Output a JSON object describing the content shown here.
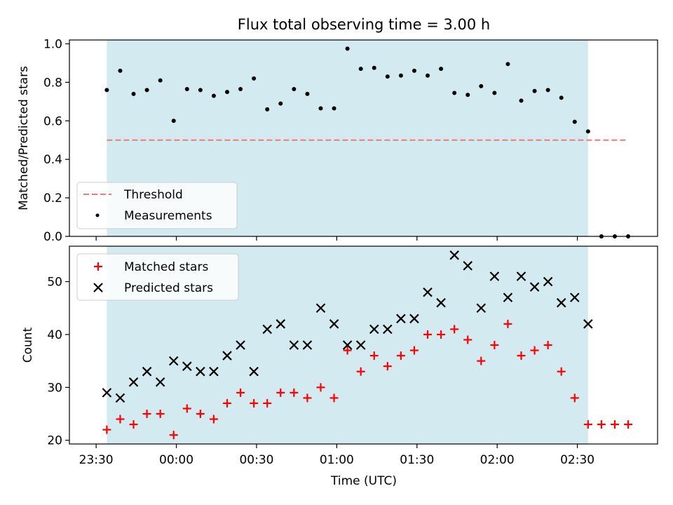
{
  "title": "Flux total observing time = 3.00 h",
  "colors": {
    "shade": "#d4eaf1",
    "threshold": "#f07a7a",
    "measurements": "#000000",
    "matched": "#ff0000",
    "predicted": "#000000"
  },
  "chart_data": [
    {
      "type": "scatter",
      "ylabel": "Matched/Predicted stars",
      "ylim": [
        0,
        1.02
      ],
      "yticks": [
        0.0,
        0.2,
        0.4,
        0.6,
        0.8,
        1.0
      ],
      "ytick_labels": [
        "0.0",
        "0.2",
        "0.4",
        "0.6",
        "0.8",
        "1.0"
      ],
      "xlim": [
        "23:20",
        "03:00"
      ],
      "xticks": [
        "23:30",
        "00:00",
        "00:30",
        "01:00",
        "01:30",
        "02:00",
        "02:30"
      ],
      "shaded_span": [
        "23:34",
        "02:34"
      ],
      "legend": {
        "position": "lower-left",
        "entries": [
          {
            "label": "Threshold",
            "marker": "dashed-line"
          },
          {
            "label": "Measurements",
            "marker": "dot"
          }
        ]
      },
      "threshold": {
        "name": "Threshold",
        "y": 0.5,
        "x": [
          "23:34",
          "02:49"
        ]
      },
      "series": [
        {
          "name": "Measurements",
          "x": [
            "23:34",
            "23:39",
            "23:44",
            "23:49",
            "23:54",
            "23:59",
            "00:04",
            "00:09",
            "00:14",
            "00:19",
            "00:24",
            "00:29",
            "00:34",
            "00:39",
            "00:44",
            "00:49",
            "00:54",
            "00:59",
            "01:04",
            "01:09",
            "01:14",
            "01:19",
            "01:24",
            "01:29",
            "01:34",
            "01:39",
            "01:44",
            "01:49",
            "01:54",
            "01:59",
            "02:04",
            "02:09",
            "02:14",
            "02:19",
            "02:24",
            "02:29",
            "02:34",
            "02:39",
            "02:44",
            "02:49"
          ],
          "y": [
            0.76,
            0.86,
            0.74,
            0.76,
            0.81,
            0.6,
            0.765,
            0.76,
            0.73,
            0.75,
            0.765,
            0.82,
            0.66,
            0.69,
            0.765,
            0.74,
            0.665,
            0.665,
            0.975,
            0.87,
            0.875,
            0.83,
            0.835,
            0.86,
            0.835,
            0.87,
            0.745,
            0.735,
            0.78,
            0.745,
            0.895,
            0.705,
            0.755,
            0.76,
            0.72,
            0.595,
            0.545,
            0.0,
            0.0,
            0.0
          ]
        }
      ]
    },
    {
      "type": "scatter",
      "xlabel": "Time (UTC)",
      "ylabel": "Count",
      "ylim": [
        19.3,
        56.7
      ],
      "yticks": [
        20,
        30,
        40,
        50
      ],
      "ytick_labels": [
        "20",
        "30",
        "40",
        "50"
      ],
      "xlim": [
        "23:20",
        "03:00"
      ],
      "xticks": [
        "23:30",
        "00:00",
        "00:30",
        "01:00",
        "01:30",
        "02:00",
        "02:30"
      ],
      "xtick_labels": [
        "23:30",
        "00:00",
        "00:30",
        "01:00",
        "01:30",
        "02:00",
        "02:30"
      ],
      "shaded_span": [
        "23:34",
        "02:34"
      ],
      "legend": {
        "position": "top-left",
        "entries": [
          {
            "label": "Matched stars",
            "marker": "plus"
          },
          {
            "label": "Predicted stars",
            "marker": "x"
          }
        ]
      },
      "series": [
        {
          "name": "Matched stars",
          "marker": "plus",
          "x": [
            "23:34",
            "23:39",
            "23:44",
            "23:49",
            "23:54",
            "23:59",
            "00:04",
            "00:09",
            "00:14",
            "00:19",
            "00:24",
            "00:29",
            "00:34",
            "00:39",
            "00:44",
            "00:49",
            "00:54",
            "00:59",
            "01:04",
            "01:09",
            "01:14",
            "01:19",
            "01:24",
            "01:29",
            "01:34",
            "01:39",
            "01:44",
            "01:49",
            "01:54",
            "01:59",
            "02:04",
            "02:09",
            "02:14",
            "02:19",
            "02:24",
            "02:29",
            "02:34",
            "02:39",
            "02:44",
            "02:49"
          ],
          "y": [
            22,
            24,
            23,
            25,
            25,
            21,
            26,
            25,
            24,
            27,
            29,
            27,
            27,
            29,
            29,
            28,
            30,
            28,
            37,
            33,
            36,
            34,
            36,
            37,
            40,
            40,
            41,
            39,
            35,
            38,
            42,
            36,
            37,
            38,
            33,
            28,
            23,
            23,
            23,
            23
          ]
        },
        {
          "name": "Predicted stars",
          "marker": "x",
          "x": [
            "23:34",
            "23:39",
            "23:44",
            "23:49",
            "23:54",
            "23:59",
            "00:04",
            "00:09",
            "00:14",
            "00:19",
            "00:24",
            "00:29",
            "00:34",
            "00:39",
            "00:44",
            "00:49",
            "00:54",
            "00:59",
            "01:04",
            "01:09",
            "01:14",
            "01:19",
            "01:24",
            "01:29",
            "01:34",
            "01:39",
            "01:44",
            "01:49",
            "01:54",
            "01:59",
            "02:04",
            "02:09",
            "02:14",
            "02:19",
            "02:24",
            "02:29",
            "02:34"
          ],
          "y": [
            29,
            28,
            31,
            33,
            31,
            35,
            34,
            33,
            33,
            36,
            38,
            33,
            41,
            42,
            38,
            38,
            45,
            42,
            38,
            38,
            41,
            41,
            43,
            43,
            48,
            46,
            55,
            53,
            45,
            51,
            47,
            51,
            49,
            50,
            46,
            47,
            42
          ]
        }
      ]
    }
  ]
}
